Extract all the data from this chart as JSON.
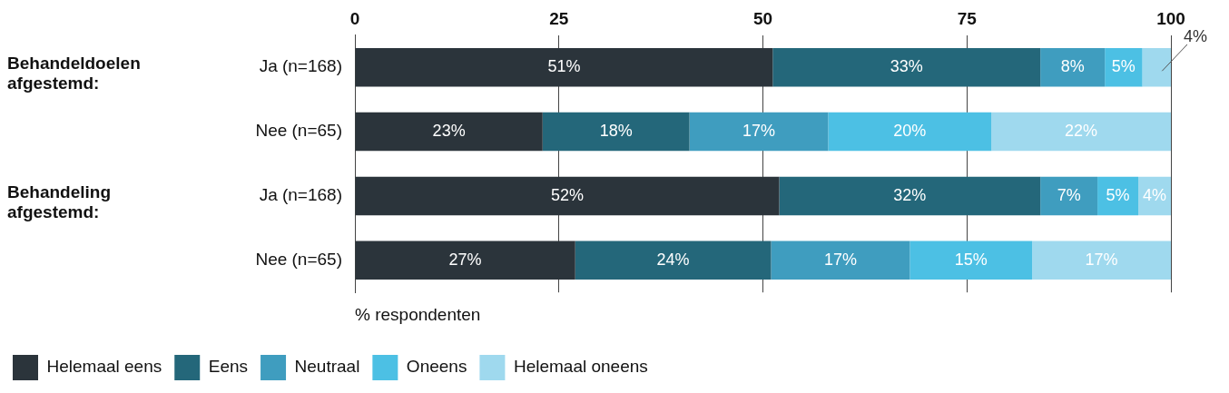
{
  "chart_data": {
    "type": "bar",
    "orientation": "horizontal",
    "stacked": true,
    "categories": [
      "Ja (n=168)",
      "Nee (n=65)",
      "Ja (n=168)",
      "Nee (n=65)"
    ],
    "series": [
      {
        "name": "Helemaal eens",
        "color": "#2b343b",
        "values": [
          51.2,
          23,
          52,
          27
        ],
        "value_labels": [
          "51%",
          "23%",
          "52%",
          "27%"
        ]
      },
      {
        "name": "Eens",
        "color": "#24677a",
        "values": [
          32.8,
          18,
          32,
          24
        ],
        "value_labels": [
          "33%",
          "18%",
          "32%",
          "24%"
        ]
      },
      {
        "name": "Neutraal",
        "color": "#3f9dbf",
        "values": [
          7.9,
          17,
          7,
          17
        ],
        "value_labels": [
          "8%",
          "17%",
          "7%",
          "17%"
        ]
      },
      {
        "name": "Oneens",
        "color": "#4cc0e4",
        "values": [
          4.6,
          20,
          5,
          15
        ],
        "value_labels": [
          "5%",
          "20%",
          "5%",
          "15%"
        ]
      },
      {
        "name": "Helemaal oneens",
        "color": "#9fd9ee",
        "values": [
          3.5,
          22,
          4,
          17
        ],
        "value_labels": [
          "4%",
          "22%",
          "4%",
          "17%"
        ]
      }
    ],
    "xlim": [
      0,
      100
    ],
    "xticks": [
      0,
      25,
      50,
      75,
      100
    ],
    "xlabel": "% respondenten",
    "annotations": [
      "Behandeldoelen afgestemd:",
      "Behandeling afgestemd:"
    ],
    "grid": "x",
    "legend": "bottom left"
  }
}
